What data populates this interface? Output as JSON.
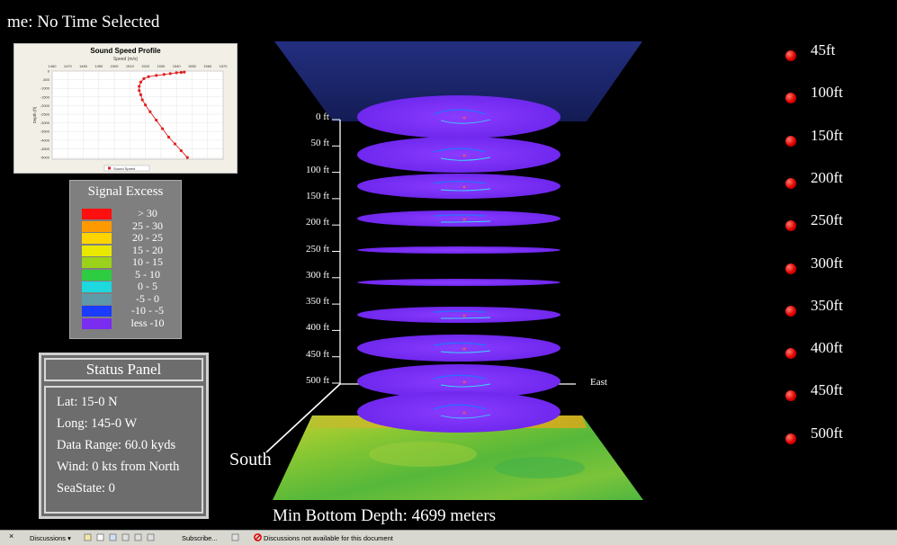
{
  "time_label": "me: No Time Selected",
  "sound_speed_profile": {
    "title": "Sound Speed Profile",
    "subtitle": "Speed (m/s)",
    "x_ticks": [
      "1460",
      "1470",
      "1480",
      "1490",
      "1500",
      "1510",
      "1520",
      "1530",
      "1540",
      "1550",
      "1560",
      "1570"
    ],
    "y_ticks": [
      "0",
      "-500",
      "-1000",
      "-1500",
      "-2000",
      "-2500",
      "-3000",
      "-3500",
      "-4000",
      "-4500",
      "-5000"
    ],
    "ylabel": "Depth (ft)",
    "legend": "Sound Speed",
    "chart_data": {
      "type": "line",
      "title": "Sound Speed Profile",
      "xlabel": "Speed (m/s)",
      "ylabel": "Depth (ft)",
      "series": [
        {
          "name": "Sound Speed",
          "x": [
            1545,
            1543,
            1540,
            1536,
            1532,
            1527,
            1522,
            1519,
            1517,
            1516,
            1516,
            1517,
            1518,
            1520,
            1523,
            1527,
            1531,
            1535,
            1539,
            1543,
            1547
          ],
          "y": [
            -60,
            -80,
            -100,
            -150,
            -200,
            -260,
            -330,
            -450,
            -650,
            -900,
            -1150,
            -1400,
            -1700,
            -2000,
            -2400,
            -2900,
            -3400,
            -3900,
            -4300,
            -4700,
            -5100
          ]
        }
      ]
    }
  },
  "signal_excess": {
    "title": "Signal Excess",
    "rows": [
      {
        "color": "#ff1010",
        "label": "> 30"
      },
      {
        "color": "#ff9900",
        "label": "25 - 30"
      },
      {
        "color": "#ffd400",
        "label": "20 - 25"
      },
      {
        "color": "#e8e800",
        "label": "15 - 20"
      },
      {
        "color": "#9ad11a",
        "label": "10 - 15"
      },
      {
        "color": "#2ecc40",
        "label": "5 - 10"
      },
      {
        "color": "#1ed8e0",
        "label": "0 - 5"
      },
      {
        "color": "#5e9aa8",
        "label": "-5 - 0"
      },
      {
        "color": "#1a3cff",
        "label": "-10 - -5"
      },
      {
        "color": "#7a2cf0",
        "label": "less -10"
      }
    ]
  },
  "status_panel": {
    "title": "Status Panel",
    "lat": "Lat:   15-0 N",
    "long": "Long: 145-0 W",
    "data_range": "Data Range: 60.0 kyds",
    "wind": "Wind: 0 kts from North",
    "sea_state": "SeaState: 0"
  },
  "depth_axis": [
    "0 ft",
    "50 ft",
    "100 ft",
    "150 ft",
    "200 ft",
    "250 ft",
    "300 ft",
    "350 ft",
    "400 ft",
    "450 ft",
    "500 ft"
  ],
  "depth_legend": [
    "45ft",
    "100ft",
    "150ft",
    "200ft",
    "250ft",
    "300ft",
    "350ft",
    "400ft",
    "450ft",
    "500ft"
  ],
  "south_label": "South",
  "east_label": "East",
  "min_bottom_depth": "Min Bottom Depth: 4699 meters",
  "taskbar": {
    "discussions": "Discussions",
    "subscribe": "Subscribe...",
    "status": "Discussions not available for this document"
  },
  "colors": {
    "disc": "#7a2cf0",
    "cone": "#1a2a78",
    "accent_red": "#e00000"
  }
}
